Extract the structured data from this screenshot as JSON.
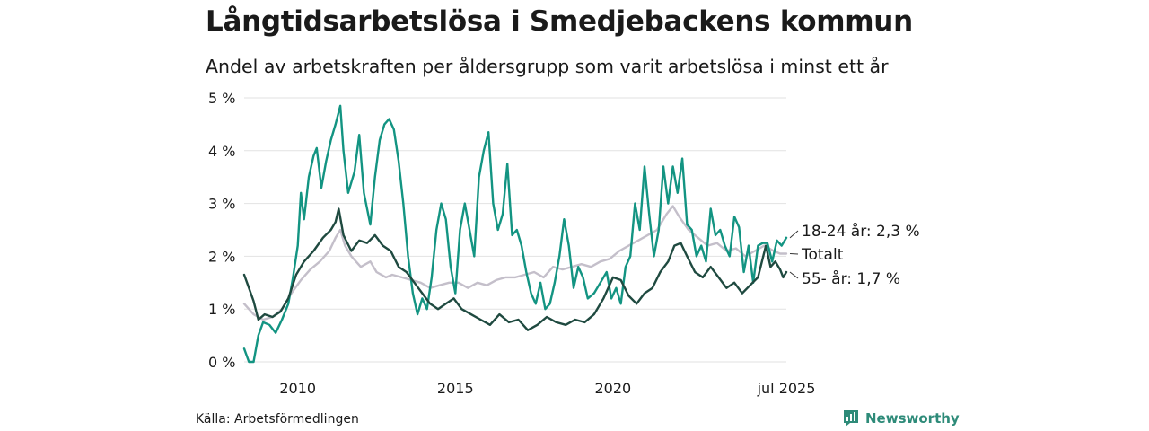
{
  "header": {
    "title": "Långtidsarbetslösa i Smedjebackens kommun",
    "subtitle": "Andel av arbetskraften per åldersgrupp som varit arbetslösa i minst ett år"
  },
  "footer": {
    "source": "Källa: Arbetsförmedlingen",
    "brand": "Newsworthy"
  },
  "colors": {
    "young": "#139482",
    "total": "#c4bfca",
    "old": "#1f4a40",
    "grid": "#e2e2e2",
    "brand": "#2e8b79"
  },
  "chart_data": {
    "type": "line",
    "title": "Långtidsarbetslösa i Smedjebackens kommun",
    "subtitle": "Andel av arbetskraften per åldersgrupp som varit arbetslösa i minst ett år",
    "unit": "%",
    "ylim": [
      0,
      5
    ],
    "y_ticks": [
      {
        "value": 0,
        "label": "0 %"
      },
      {
        "value": 1,
        "label": "1 %"
      },
      {
        "value": 2,
        "label": "2 %"
      },
      {
        "value": 3,
        "label": "3 %"
      },
      {
        "value": 4,
        "label": "4 %"
      },
      {
        "value": 5,
        "label": "5 %"
      }
    ],
    "xlim": [
      2008.3,
      2025.5
    ],
    "x_ticks": [
      {
        "value": 2010,
        "label": "2010"
      },
      {
        "value": 2015,
        "label": "2015"
      },
      {
        "value": 2020,
        "label": "2020"
      },
      {
        "value": 2025.5,
        "label": "jul 2025"
      }
    ],
    "grid": true,
    "legend": "end-labels",
    "series": [
      {
        "name": "Totalt",
        "label": "Totalt",
        "color_key": "total",
        "points": [
          [
            2008.3,
            1.1
          ],
          [
            2008.6,
            0.9
          ],
          [
            2008.9,
            0.8
          ],
          [
            2009.2,
            0.85
          ],
          [
            2009.5,
            1.0
          ],
          [
            2009.8,
            1.3
          ],
          [
            2010.1,
            1.55
          ],
          [
            2010.4,
            1.75
          ],
          [
            2010.7,
            1.9
          ],
          [
            2011.0,
            2.1
          ],
          [
            2011.2,
            2.35
          ],
          [
            2011.35,
            2.5
          ],
          [
            2011.5,
            2.2
          ],
          [
            2011.7,
            2.0
          ],
          [
            2012.0,
            1.8
          ],
          [
            2012.3,
            1.9
          ],
          [
            2012.5,
            1.7
          ],
          [
            2012.8,
            1.6
          ],
          [
            2013.0,
            1.65
          ],
          [
            2013.3,
            1.6
          ],
          [
            2013.6,
            1.55
          ],
          [
            2013.9,
            1.5
          ],
          [
            2014.2,
            1.4
          ],
          [
            2014.5,
            1.45
          ],
          [
            2014.8,
            1.5
          ],
          [
            2015.1,
            1.5
          ],
          [
            2015.4,
            1.4
          ],
          [
            2015.7,
            1.5
          ],
          [
            2016.0,
            1.45
          ],
          [
            2016.3,
            1.55
          ],
          [
            2016.6,
            1.6
          ],
          [
            2016.9,
            1.6
          ],
          [
            2017.2,
            1.65
          ],
          [
            2017.5,
            1.7
          ],
          [
            2017.8,
            1.6
          ],
          [
            2018.1,
            1.8
          ],
          [
            2018.4,
            1.75
          ],
          [
            2018.7,
            1.8
          ],
          [
            2019.0,
            1.85
          ],
          [
            2019.3,
            1.8
          ],
          [
            2019.6,
            1.9
          ],
          [
            2019.9,
            1.95
          ],
          [
            2020.2,
            2.1
          ],
          [
            2020.5,
            2.2
          ],
          [
            2020.8,
            2.3
          ],
          [
            2021.1,
            2.4
          ],
          [
            2021.4,
            2.5
          ],
          [
            2021.7,
            2.8
          ],
          [
            2021.9,
            2.95
          ],
          [
            2022.1,
            2.75
          ],
          [
            2022.4,
            2.5
          ],
          [
            2022.7,
            2.35
          ],
          [
            2023.0,
            2.2
          ],
          [
            2023.3,
            2.25
          ],
          [
            2023.6,
            2.1
          ],
          [
            2023.9,
            2.15
          ],
          [
            2024.2,
            2.0
          ],
          [
            2024.5,
            2.1
          ],
          [
            2024.8,
            2.2
          ],
          [
            2025.1,
            2.1
          ],
          [
            2025.3,
            2.05
          ],
          [
            2025.5,
            2.05
          ]
        ]
      },
      {
        "name": "18-24 år",
        "label": "18-24 år: 2,3 %",
        "color_key": "young",
        "points": [
          [
            2008.3,
            0.25
          ],
          [
            2008.45,
            0.0
          ],
          [
            2008.6,
            0.0
          ],
          [
            2008.75,
            0.5
          ],
          [
            2008.9,
            0.75
          ],
          [
            2009.1,
            0.7
          ],
          [
            2009.3,
            0.55
          ],
          [
            2009.5,
            0.8
          ],
          [
            2009.7,
            1.1
          ],
          [
            2009.85,
            1.6
          ],
          [
            2010.0,
            2.2
          ],
          [
            2010.1,
            3.2
          ],
          [
            2010.2,
            2.7
          ],
          [
            2010.35,
            3.5
          ],
          [
            2010.5,
            3.9
          ],
          [
            2010.6,
            4.05
          ],
          [
            2010.75,
            3.3
          ],
          [
            2010.9,
            3.8
          ],
          [
            2011.05,
            4.2
          ],
          [
            2011.2,
            4.5
          ],
          [
            2011.35,
            4.85
          ],
          [
            2011.45,
            4.0
          ],
          [
            2011.6,
            3.2
          ],
          [
            2011.8,
            3.6
          ],
          [
            2011.95,
            4.3
          ],
          [
            2012.1,
            3.2
          ],
          [
            2012.3,
            2.6
          ],
          [
            2012.45,
            3.5
          ],
          [
            2012.6,
            4.2
          ],
          [
            2012.75,
            4.5
          ],
          [
            2012.9,
            4.6
          ],
          [
            2013.05,
            4.4
          ],
          [
            2013.2,
            3.8
          ],
          [
            2013.35,
            3.0
          ],
          [
            2013.5,
            2.0
          ],
          [
            2013.65,
            1.3
          ],
          [
            2013.8,
            0.9
          ],
          [
            2013.95,
            1.2
          ],
          [
            2014.1,
            1.0
          ],
          [
            2014.25,
            1.6
          ],
          [
            2014.4,
            2.5
          ],
          [
            2014.55,
            3.0
          ],
          [
            2014.7,
            2.7
          ],
          [
            2014.85,
            1.8
          ],
          [
            2015.0,
            1.3
          ],
          [
            2015.15,
            2.5
          ],
          [
            2015.3,
            3.0
          ],
          [
            2015.45,
            2.5
          ],
          [
            2015.6,
            2.0
          ],
          [
            2015.75,
            3.5
          ],
          [
            2015.9,
            4.0
          ],
          [
            2016.05,
            4.35
          ],
          [
            2016.2,
            3.0
          ],
          [
            2016.35,
            2.5
          ],
          [
            2016.5,
            2.8
          ],
          [
            2016.65,
            3.75
          ],
          [
            2016.8,
            2.4
          ],
          [
            2016.95,
            2.5
          ],
          [
            2017.1,
            2.2
          ],
          [
            2017.25,
            1.7
          ],
          [
            2017.4,
            1.3
          ],
          [
            2017.55,
            1.1
          ],
          [
            2017.7,
            1.5
          ],
          [
            2017.85,
            1.0
          ],
          [
            2018.0,
            1.1
          ],
          [
            2018.15,
            1.5
          ],
          [
            2018.3,
            2.0
          ],
          [
            2018.45,
            2.7
          ],
          [
            2018.6,
            2.2
          ],
          [
            2018.75,
            1.4
          ],
          [
            2018.9,
            1.8
          ],
          [
            2019.05,
            1.6
          ],
          [
            2019.2,
            1.2
          ],
          [
            2019.4,
            1.3
          ],
          [
            2019.6,
            1.5
          ],
          [
            2019.8,
            1.7
          ],
          [
            2019.95,
            1.2
          ],
          [
            2020.1,
            1.4
          ],
          [
            2020.25,
            1.1
          ],
          [
            2020.4,
            1.8
          ],
          [
            2020.55,
            2.0
          ],
          [
            2020.7,
            3.0
          ],
          [
            2020.85,
            2.5
          ],
          [
            2021.0,
            3.7
          ],
          [
            2021.15,
            2.8
          ],
          [
            2021.3,
            2.0
          ],
          [
            2021.45,
            2.5
          ],
          [
            2021.6,
            3.7
          ],
          [
            2021.75,
            3.0
          ],
          [
            2021.9,
            3.7
          ],
          [
            2022.05,
            3.2
          ],
          [
            2022.2,
            3.85
          ],
          [
            2022.35,
            2.6
          ],
          [
            2022.5,
            2.5
          ],
          [
            2022.65,
            2.0
          ],
          [
            2022.8,
            2.2
          ],
          [
            2022.95,
            1.9
          ],
          [
            2023.1,
            2.9
          ],
          [
            2023.25,
            2.4
          ],
          [
            2023.4,
            2.5
          ],
          [
            2023.55,
            2.2
          ],
          [
            2023.7,
            2.0
          ],
          [
            2023.85,
            2.75
          ],
          [
            2024.0,
            2.55
          ],
          [
            2024.15,
            1.7
          ],
          [
            2024.3,
            2.2
          ],
          [
            2024.45,
            1.5
          ],
          [
            2024.6,
            2.2
          ],
          [
            2024.75,
            2.25
          ],
          [
            2024.9,
            2.25
          ],
          [
            2025.05,
            1.9
          ],
          [
            2025.2,
            2.3
          ],
          [
            2025.35,
            2.2
          ],
          [
            2025.5,
            2.35
          ]
        ]
      },
      {
        "name": "55- år",
        "label": "55- år: 1,7 %",
        "color_key": "old",
        "points": [
          [
            2008.3,
            1.65
          ],
          [
            2008.45,
            1.4
          ],
          [
            2008.6,
            1.15
          ],
          [
            2008.75,
            0.8
          ],
          [
            2008.95,
            0.9
          ],
          [
            2009.2,
            0.85
          ],
          [
            2009.45,
            0.95
          ],
          [
            2009.7,
            1.2
          ],
          [
            2009.95,
            1.65
          ],
          [
            2010.2,
            1.9
          ],
          [
            2010.5,
            2.1
          ],
          [
            2010.8,
            2.35
          ],
          [
            2011.05,
            2.5
          ],
          [
            2011.2,
            2.65
          ],
          [
            2011.3,
            2.9
          ],
          [
            2011.45,
            2.4
          ],
          [
            2011.7,
            2.1
          ],
          [
            2011.95,
            2.3
          ],
          [
            2012.2,
            2.25
          ],
          [
            2012.45,
            2.4
          ],
          [
            2012.7,
            2.2
          ],
          [
            2012.95,
            2.1
          ],
          [
            2013.2,
            1.8
          ],
          [
            2013.45,
            1.7
          ],
          [
            2013.7,
            1.5
          ],
          [
            2013.95,
            1.3
          ],
          [
            2014.2,
            1.1
          ],
          [
            2014.45,
            1.0
          ],
          [
            2014.7,
            1.1
          ],
          [
            2014.95,
            1.2
          ],
          [
            2015.2,
            1.0
          ],
          [
            2015.5,
            0.9
          ],
          [
            2015.8,
            0.8
          ],
          [
            2016.1,
            0.7
          ],
          [
            2016.4,
            0.9
          ],
          [
            2016.7,
            0.75
          ],
          [
            2017.0,
            0.8
          ],
          [
            2017.3,
            0.6
          ],
          [
            2017.6,
            0.7
          ],
          [
            2017.9,
            0.85
          ],
          [
            2018.2,
            0.75
          ],
          [
            2018.5,
            0.7
          ],
          [
            2018.8,
            0.8
          ],
          [
            2019.1,
            0.75
          ],
          [
            2019.4,
            0.9
          ],
          [
            2019.7,
            1.2
          ],
          [
            2020.0,
            1.6
          ],
          [
            2020.25,
            1.55
          ],
          [
            2020.5,
            1.25
          ],
          [
            2020.75,
            1.1
          ],
          [
            2021.0,
            1.3
          ],
          [
            2021.25,
            1.4
          ],
          [
            2021.5,
            1.7
          ],
          [
            2021.75,
            1.9
          ],
          [
            2021.95,
            2.2
          ],
          [
            2022.15,
            2.25
          ],
          [
            2022.35,
            2.0
          ],
          [
            2022.6,
            1.7
          ],
          [
            2022.85,
            1.6
          ],
          [
            2023.1,
            1.8
          ],
          [
            2023.35,
            1.6
          ],
          [
            2023.6,
            1.4
          ],
          [
            2023.85,
            1.5
          ],
          [
            2024.1,
            1.3
          ],
          [
            2024.35,
            1.45
          ],
          [
            2024.6,
            1.6
          ],
          [
            2024.85,
            2.2
          ],
          [
            2025.0,
            1.8
          ],
          [
            2025.15,
            1.9
          ],
          [
            2025.3,
            1.75
          ],
          [
            2025.4,
            1.6
          ],
          [
            2025.5,
            1.7
          ]
        ]
      }
    ]
  }
}
